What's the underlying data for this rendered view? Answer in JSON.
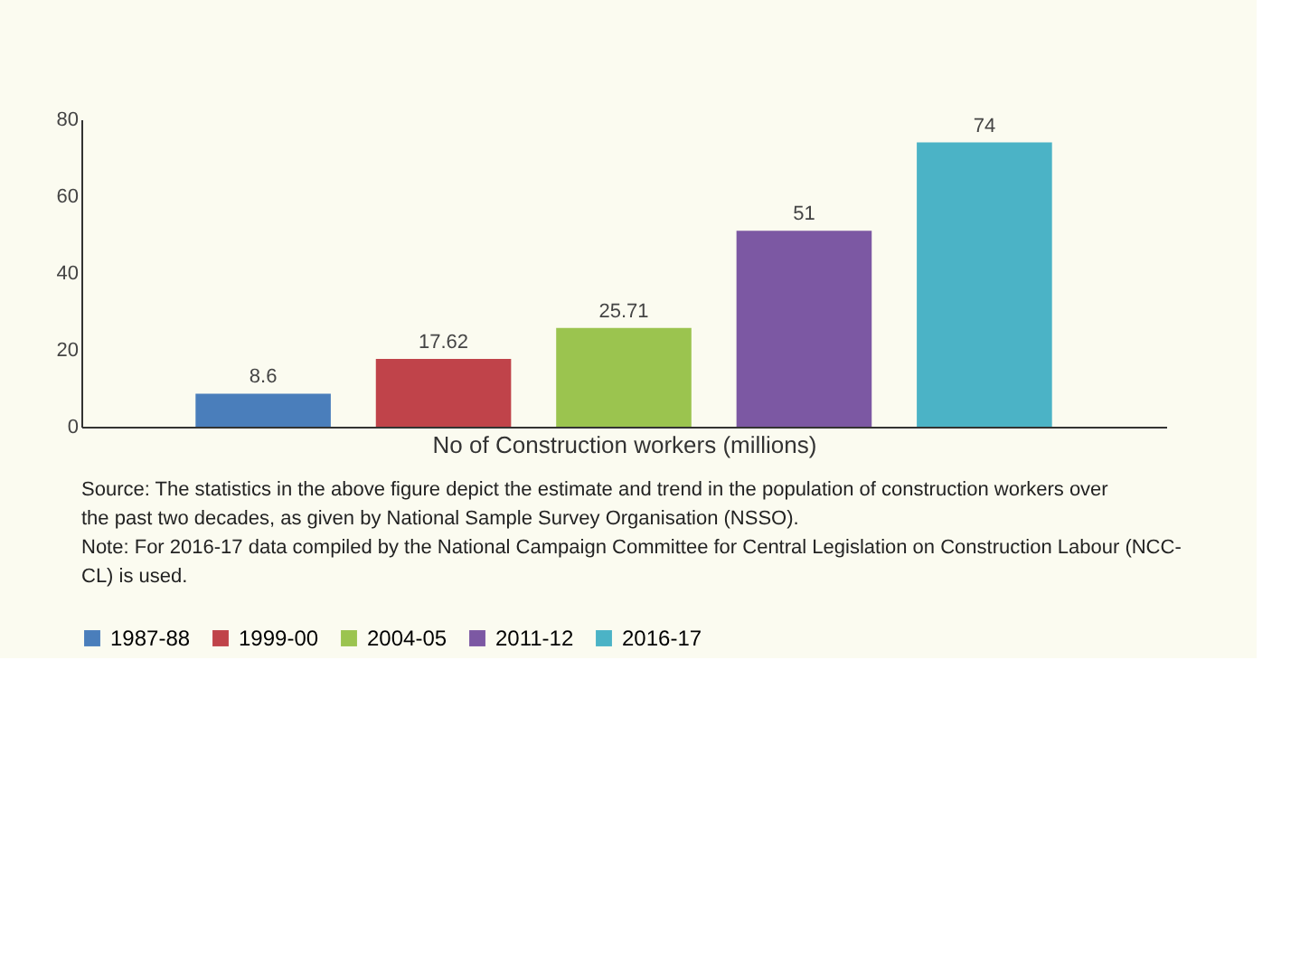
{
  "chart_data": {
    "type": "bar",
    "categories": [
      null
    ],
    "xlabel": "No of Construction workers (millions)",
    "series": [
      {
        "name": "1987-88",
        "color": "#4a7ebb",
        "values": [
          8.6
        ]
      },
      {
        "name": "1999-00",
        "color": "#c0434a",
        "values": [
          17.62
        ]
      },
      {
        "name": "2004-05",
        "color": "#9bc44f",
        "values": [
          25.71
        ]
      },
      {
        "name": "2011-12",
        "color": "#7c58a3",
        "values": [
          51
        ]
      },
      {
        "name": "2016-17",
        "color": "#4bb3c6",
        "values": [
          74
        ]
      }
    ],
    "ylim": [
      0,
      80
    ],
    "yticks": [
      0,
      20,
      40,
      60,
      80
    ],
    "grid": false,
    "legend": "bottom",
    "data_labels": true,
    "tick_labels": "y",
    "annotations": [
      "Source: The statistics in the above figure depict the estimate and trend in the population of construction workers over the past two decades, as given by National Sample Survey Organisation (NSSO).",
      "Note: For 2016-17 data compiled by the National Campaign Committee for Central Legislation on Construction Labour (NCC-CL) is used."
    ]
  }
}
